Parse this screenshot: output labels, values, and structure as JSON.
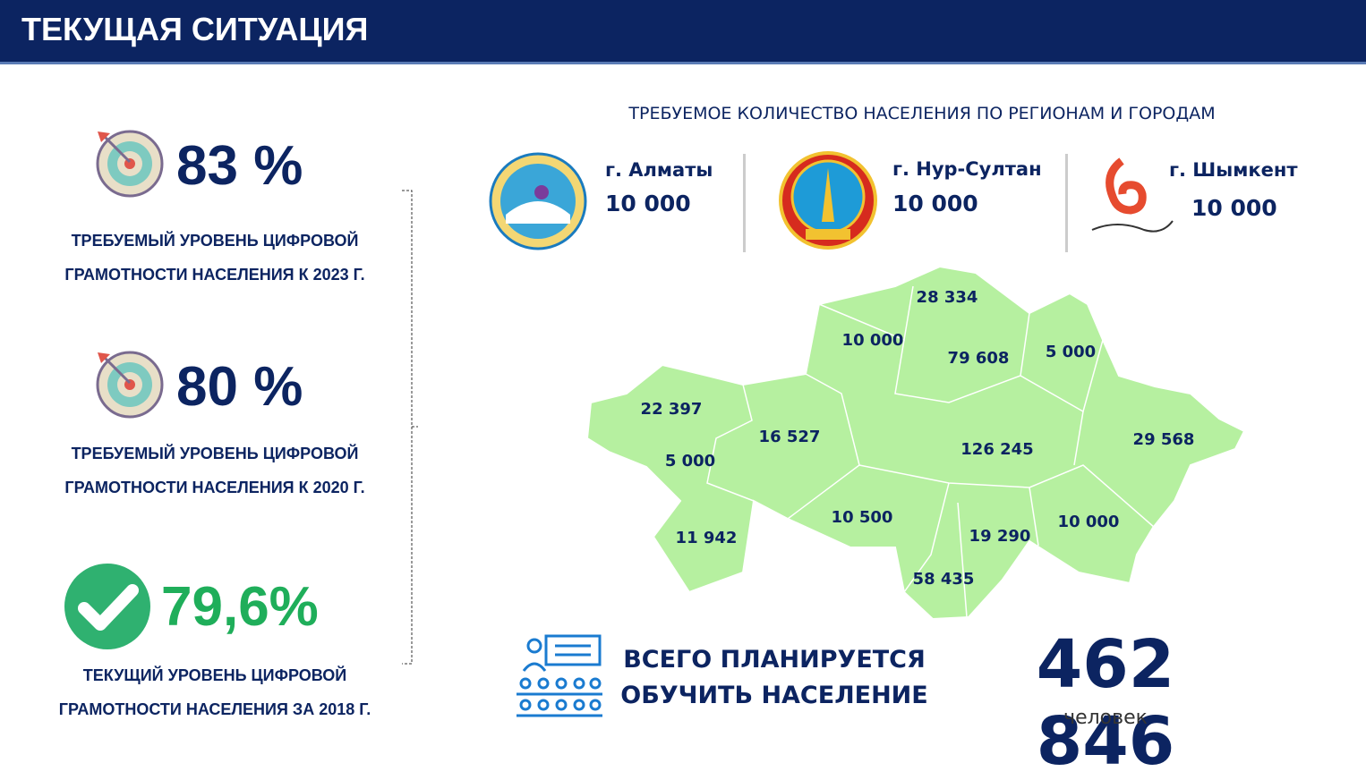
{
  "header": {
    "title": "ТЕКУЩАЯ СИТУАЦИЯ"
  },
  "stats": [
    {
      "value": "83 %",
      "caption": [
        "ТРЕБУЕМЫЙ УРОВЕНЬ ЦИФРОВОЙ",
        "ГРАМОТНОСТИ НАСЕЛЕНИЯ К 2023 Г."
      ]
    },
    {
      "value": "80 %",
      "caption": [
        "ТРЕБУЕМЫЙ УРОВЕНЬ ЦИФРОВОЙ",
        "ГРАМОТНОСТИ НАСЕЛЕНИЯ К 2020 Г."
      ]
    },
    {
      "value": "79,6%",
      "caption": [
        "ТЕКУЩИЙ УРОВЕНЬ ЦИФРОВОЙ",
        "ГРАМОТНОСТИ НАСЕЛЕНИЯ ЗА 2018 Г."
      ]
    }
  ],
  "regions_title": "ТРЕБУЕМОЕ КОЛИЧЕСТВО НАСЕЛЕНИЯ ПО РЕГИОНАМ И ГОРОДАМ",
  "cities": [
    {
      "name": "г. Алматы",
      "value": "10 000"
    },
    {
      "name": "г. Нур-Султан",
      "value": "10 000"
    },
    {
      "name": "г. Шымкент",
      "value": "10 000"
    }
  ],
  "map": {
    "regions": [
      "28 334",
      "10 000",
      "79 608",
      "5 000",
      "22 397",
      "16 527",
      "126 245",
      "29 568",
      "5 000",
      "10 500",
      "19 290",
      "10 000",
      "11 942",
      "58 435"
    ]
  },
  "total": {
    "label": [
      "ВСЕГО ПЛАНИРУЕТСЯ",
      "ОБУЧИТЬ НАСЕЛЕНИЕ"
    ],
    "value": "462 846",
    "unit": "человек"
  }
}
